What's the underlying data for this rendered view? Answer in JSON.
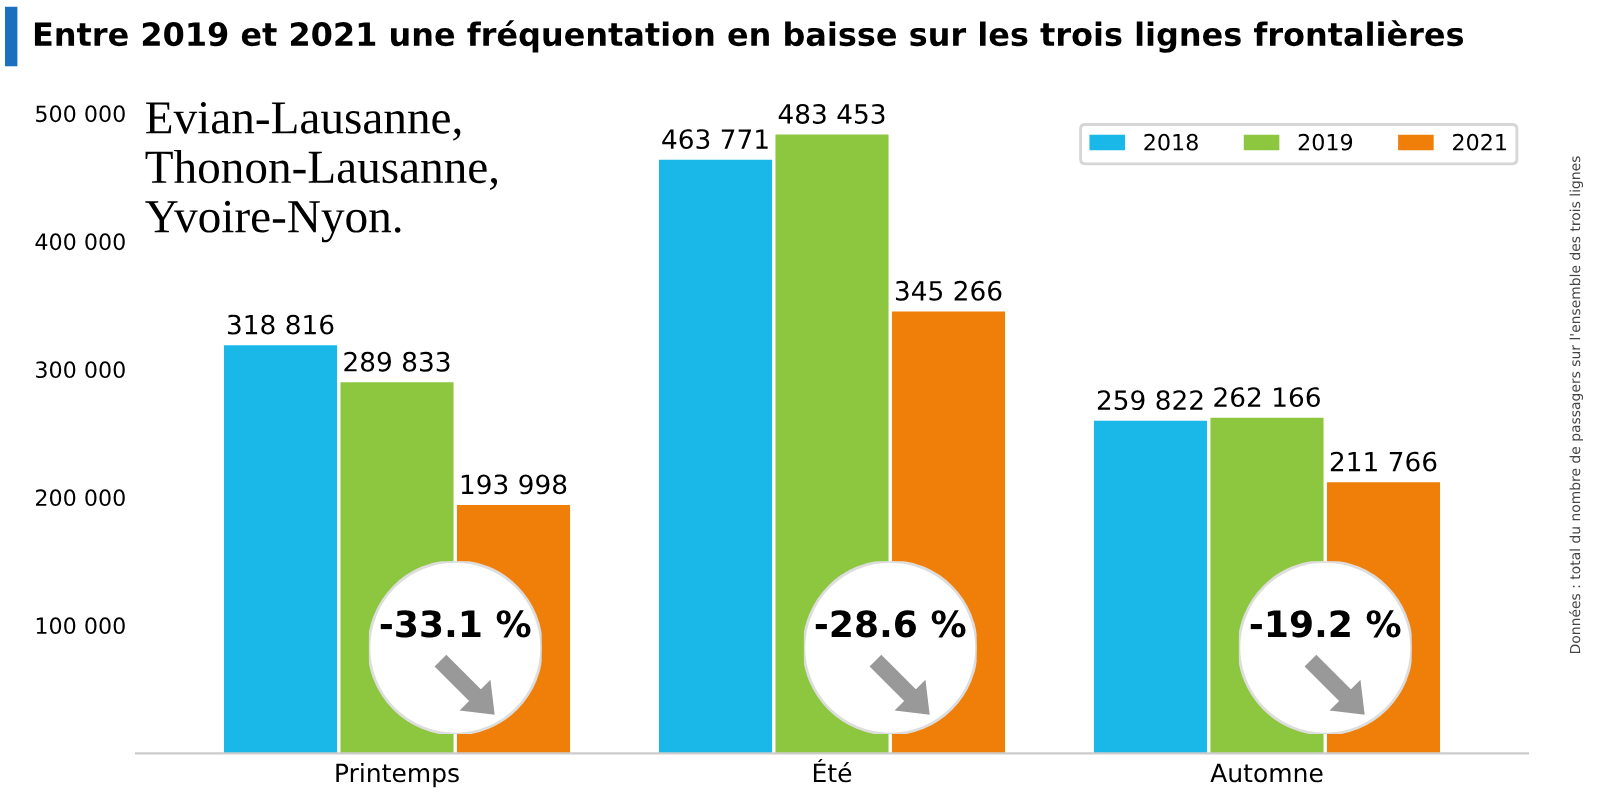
{
  "chart_data": {
    "type": "bar",
    "title": "Entre 2019 et 2021 une fréquentation en baisse sur les trois lignes frontalières",
    "categories": [
      "Printemps",
      "Été",
      "Automne"
    ],
    "series": [
      {
        "name": "2018",
        "color": "#1ab8e8",
        "values": [
          318816,
          463771,
          259822
        ],
        "value_labels": [
          "318 816",
          "463 771",
          "259 822"
        ]
      },
      {
        "name": "2019",
        "color": "#8dc63f",
        "values": [
          289833,
          483453,
          262166
        ],
        "value_labels": [
          "289 833",
          "483 453",
          "262 166"
        ]
      },
      {
        "name": "2021",
        "color": "#f07f09",
        "values": [
          193998,
          345266,
          211766
        ],
        "value_labels": [
          "193 998",
          "345 266",
          "211 766"
        ]
      }
    ],
    "ylim": [
      0,
      500000
    ],
    "yticks": [
      {
        "value": 100000,
        "label": "100 000"
      },
      {
        "value": 200000,
        "label": "200 000"
      },
      {
        "value": 300000,
        "label": "300 000"
      },
      {
        "value": 400000,
        "label": "400 000"
      },
      {
        "value": 500000,
        "label": "500 000"
      }
    ],
    "grid": false,
    "legend": "top right",
    "annotations": [
      "Evian-Lausanne,\nThonon-Lausanne,\nYvoire-Nyon.",
      "-33.1 %",
      "-28.6 %",
      "-19.2 %",
      "Données : total du nombre de passagers sur l'ensemble des trois lignes"
    ]
  }
}
